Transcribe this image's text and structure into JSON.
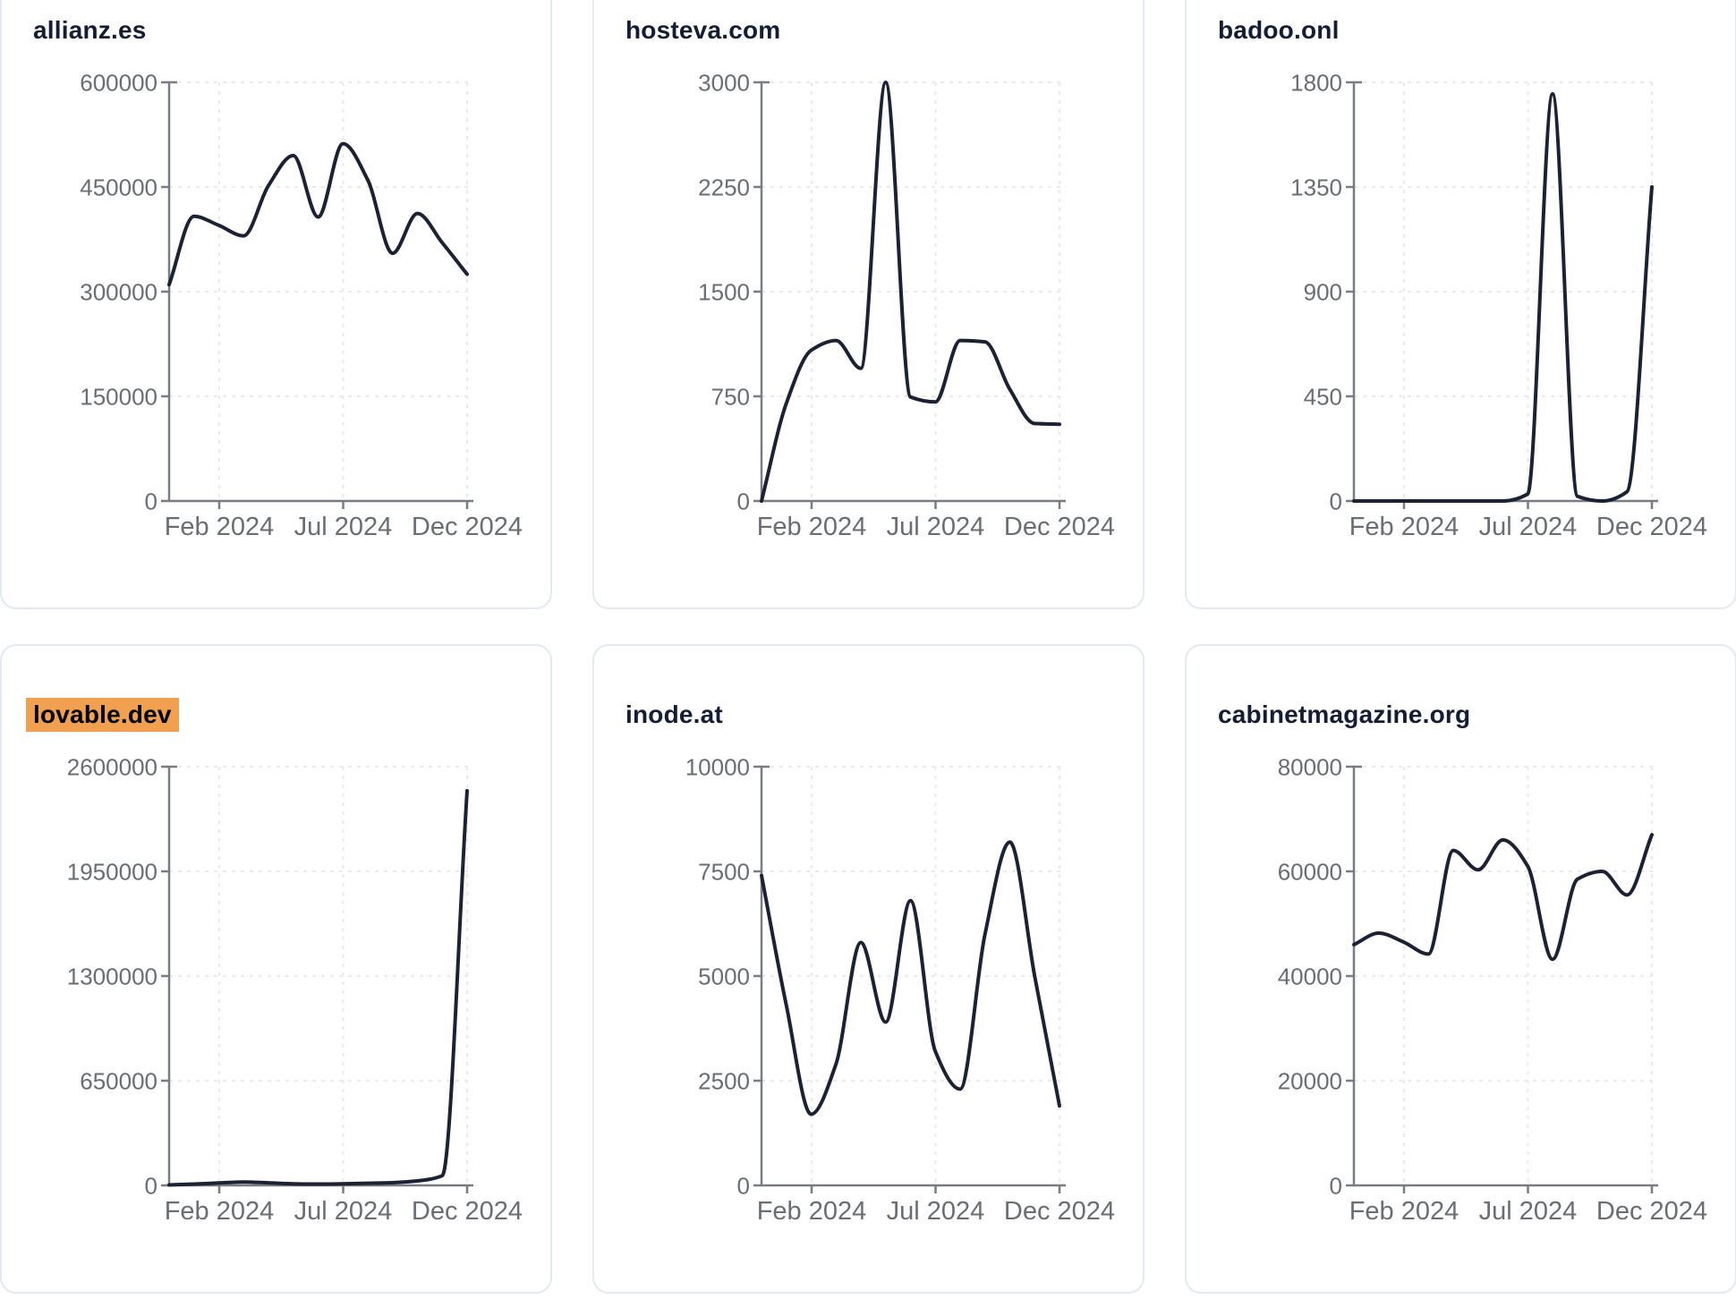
{
  "page": {
    "background": "#ffffff"
  },
  "style": {
    "line_color": "#1b2234",
    "axis_color": "#797d83",
    "grid_color": "#e8eaec",
    "tick_label_color": "#6a6e73",
    "title_color": "#131d33",
    "highlight_color": "#f0a04e",
    "card_border_color": "#e4e9ee",
    "card_background": "#ffffff"
  },
  "cards": [
    {
      "title": "allianz.es",
      "highlighted": false
    },
    {
      "title": "hosteva.com",
      "highlighted": false
    },
    {
      "title": "badoo.onl",
      "highlighted": false
    },
    {
      "title": "lovable.dev",
      "highlighted": true
    },
    {
      "title": "inode.at",
      "highlighted": false
    },
    {
      "title": "cabinetmagazine.org",
      "highlighted": false
    }
  ],
  "chart_data": [
    {
      "type": "line",
      "title": "allianz.es",
      "x": [
        "Dec 2023",
        "Jan 2024",
        "Feb 2024",
        "Mar 2024",
        "Apr 2024",
        "May 2024",
        "Jun 2024",
        "Jul 2024",
        "Aug 2024",
        "Sep 2024",
        "Oct 2024",
        "Nov 2024",
        "Dec 2024"
      ],
      "values": [
        310000,
        408000,
        395000,
        380000,
        452000,
        495000,
        407000,
        512000,
        460000,
        355000,
        412000,
        370000,
        325000
      ],
      "yticks": [
        0,
        150000,
        300000,
        450000,
        600000
      ],
      "ylim": [
        0,
        600000
      ],
      "x_tick_labels": [
        "Feb 2024",
        "Jul 2024",
        "Dec 2024"
      ],
      "grid": "dashed",
      "legend": "none"
    },
    {
      "type": "line",
      "title": "hosteva.com",
      "x": [
        "Dec 2023",
        "Jan 2024",
        "Feb 2024",
        "Mar 2024",
        "Apr 2024",
        "May 2024",
        "Jun 2024",
        "Jul 2024",
        "Aug 2024",
        "Sep 2024",
        "Oct 2024",
        "Nov 2024",
        "Dec 2024"
      ],
      "values": [
        0,
        700,
        1080,
        1150,
        950,
        3000,
        745,
        710,
        1150,
        1140,
        800,
        555,
        550
      ],
      "yticks": [
        0,
        750,
        1500,
        2250,
        3000
      ],
      "ylim": [
        0,
        3000
      ],
      "x_tick_labels": [
        "Feb 2024",
        "Jul 2024",
        "Dec 2024"
      ],
      "grid": "dashed",
      "legend": "none"
    },
    {
      "type": "line",
      "title": "badoo.onl",
      "x": [
        "Dec 2023",
        "Jan 2024",
        "Feb 2024",
        "Mar 2024",
        "Apr 2024",
        "May 2024",
        "Jun 2024",
        "Jul 2024",
        "Aug 2024",
        "Sep 2024",
        "Oct 2024",
        "Nov 2024",
        "Dec 2024"
      ],
      "values": [
        0,
        0,
        0,
        0,
        0,
        0,
        0,
        30,
        1750,
        20,
        0,
        40,
        1350
      ],
      "yticks": [
        0,
        450,
        900,
        1350,
        1800
      ],
      "ylim": [
        0,
        1800
      ],
      "x_tick_labels": [
        "Feb 2024",
        "Jul 2024",
        "Dec 2024"
      ],
      "grid": "dashed",
      "legend": "none"
    },
    {
      "type": "line",
      "title": "lovable.dev",
      "x": [
        "Dec 2023",
        "Jan 2024",
        "Feb 2024",
        "Mar 2024",
        "Apr 2024",
        "May 2024",
        "Jun 2024",
        "Jul 2024",
        "Aug 2024",
        "Sep 2024",
        "Oct 2024",
        "Nov 2024",
        "Dec 2024"
      ],
      "values": [
        3000,
        8000,
        15000,
        21000,
        16000,
        10000,
        8000,
        10000,
        13000,
        17000,
        28000,
        60000,
        2450000
      ],
      "yticks": [
        0,
        650000,
        1300000,
        1950000,
        2600000
      ],
      "ylim": [
        0,
        2600000
      ],
      "x_tick_labels": [
        "Feb 2024",
        "Jul 2024",
        "Dec 2024"
      ],
      "grid": "dashed",
      "legend": "none"
    },
    {
      "type": "line",
      "title": "inode.at",
      "x": [
        "Dec 2023",
        "Jan 2024",
        "Feb 2024",
        "Mar 2024",
        "Apr 2024",
        "May 2024",
        "Jun 2024",
        "Jul 2024",
        "Aug 2024",
        "Sep 2024",
        "Oct 2024",
        "Nov 2024",
        "Dec 2024"
      ],
      "values": [
        7400,
        4300,
        1700,
        2900,
        5800,
        3900,
        6800,
        3200,
        2300,
        6000,
        8200,
        5000,
        1900
      ],
      "yticks": [
        0,
        2500,
        5000,
        7500,
        10000
      ],
      "ylim": [
        0,
        10000
      ],
      "x_tick_labels": [
        "Feb 2024",
        "Jul 2024",
        "Dec 2024"
      ],
      "grid": "dashed",
      "legend": "none"
    },
    {
      "type": "line",
      "title": "cabinetmagazine.org",
      "x": [
        "Dec 2023",
        "Jan 2024",
        "Feb 2024",
        "Mar 2024",
        "Apr 2024",
        "May 2024",
        "Jun 2024",
        "Jul 2024",
        "Aug 2024",
        "Sep 2024",
        "Oct 2024",
        "Nov 2024",
        "Dec 2024"
      ],
      "values": [
        46000,
        48200,
        46500,
        44200,
        64000,
        60300,
        66000,
        61000,
        43200,
        58500,
        60000,
        55500,
        67000
      ],
      "yticks": [
        0,
        20000,
        40000,
        60000,
        80000
      ],
      "ylim": [
        0,
        80000
      ],
      "x_tick_labels": [
        "Feb 2024",
        "Jul 2024",
        "Dec 2024"
      ],
      "grid": "dashed",
      "legend": "none"
    }
  ]
}
